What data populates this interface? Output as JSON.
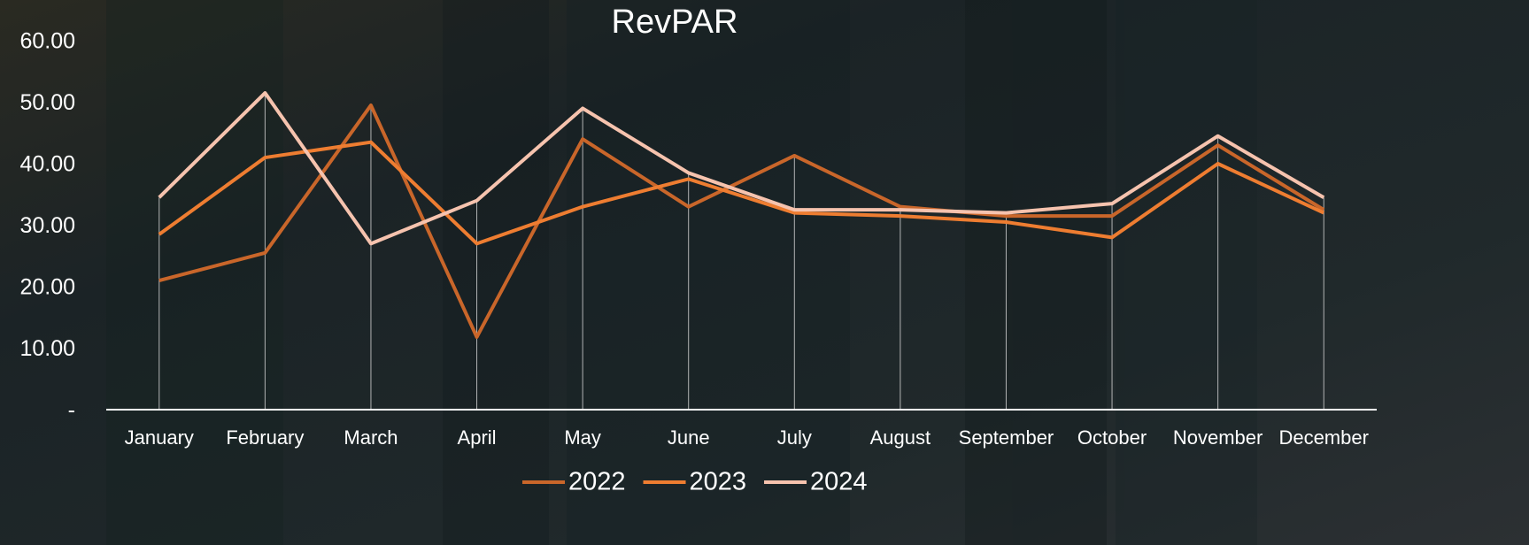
{
  "chart_data": {
    "type": "line",
    "title": "RevPAR",
    "categories": [
      "January",
      "February",
      "March",
      "April",
      "May",
      "June",
      "July",
      "August",
      "September",
      "October",
      "November",
      "December"
    ],
    "series": [
      {
        "name": "2022",
        "color": "#c9662a",
        "values": [
          21,
          25.5,
          49.5,
          11.8,
          44,
          33,
          41.3,
          33,
          31.5,
          31.5,
          43,
          32.5
        ]
      },
      {
        "name": "2023",
        "color": "#ee7d31",
        "values": [
          28.5,
          41,
          43.5,
          27,
          33,
          37.5,
          32,
          31.5,
          30.5,
          28,
          40,
          32
        ]
      },
      {
        "name": "2024",
        "color": "#f6c3ae",
        "values": [
          34.5,
          51.5,
          27,
          34,
          49,
          38.5,
          32.5,
          32.5,
          32,
          33.5,
          44.5,
          34.5
        ]
      }
    ],
    "ylim": [
      0,
      60
    ],
    "yticks": [
      {
        "value": 0,
        "label": "-"
      },
      {
        "value": 10,
        "label": "10.00"
      },
      {
        "value": 20,
        "label": "20.00"
      },
      {
        "value": 30,
        "label": "30.00"
      },
      {
        "value": 40,
        "label": "40.00"
      },
      {
        "value": 50,
        "label": "50.00"
      },
      {
        "value": 60,
        "label": "60.00"
      }
    ],
    "drop_lines": true,
    "legend": "bottom"
  }
}
